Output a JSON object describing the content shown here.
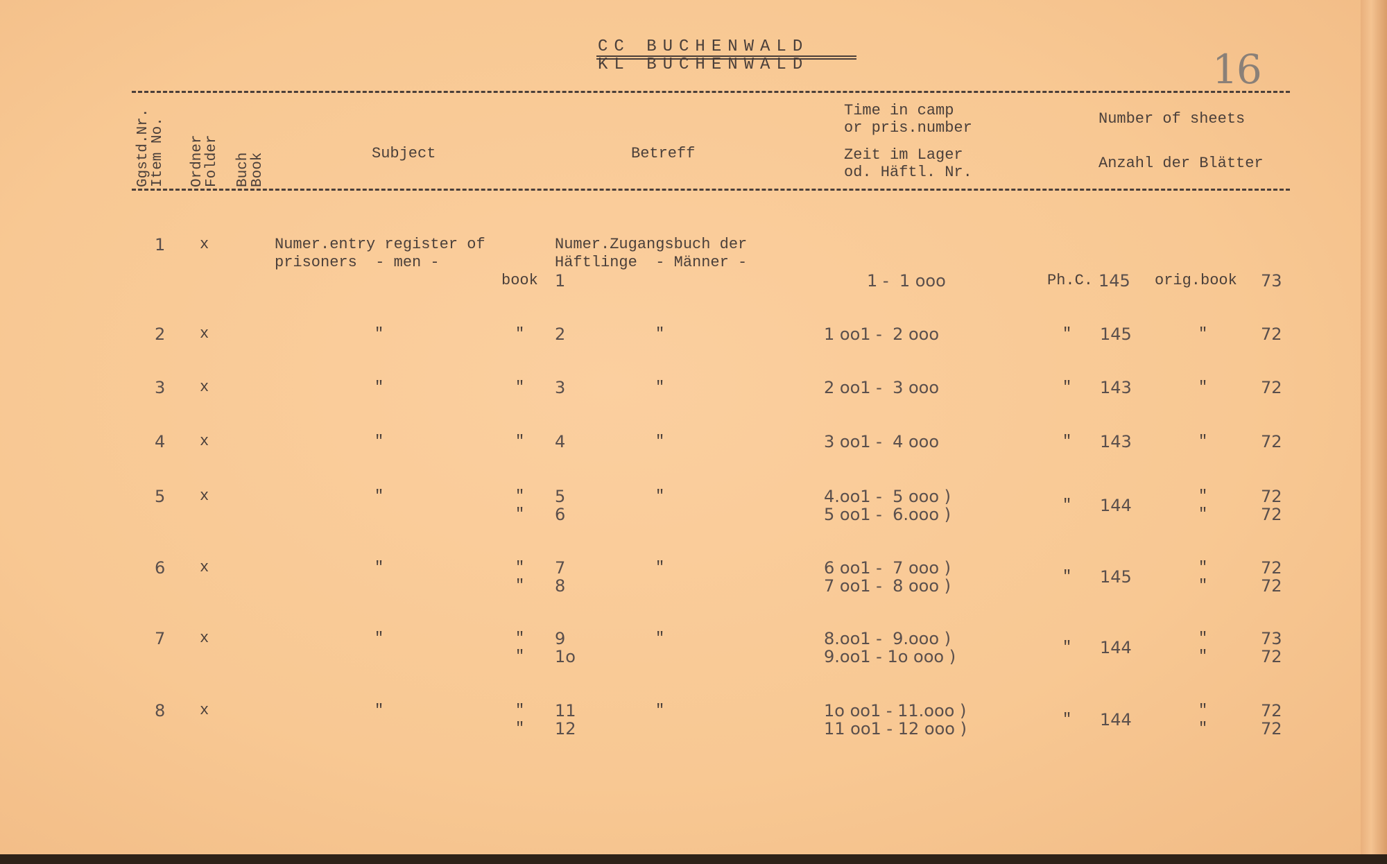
{
  "header": {
    "title_line1": "CC BUCHENWALD",
    "title_line2": "KL BUCHENWALD",
    "page_number": "16"
  },
  "columns": {
    "item": [
      "Item No.",
      "Ggstd.Nr."
    ],
    "folder": [
      "Folder",
      "Ordner"
    ],
    "book": [
      "Book",
      "Buch"
    ],
    "subject": "Subject",
    "betreff": "Betreff",
    "time_en": [
      "Time in camp",
      "or pris.number"
    ],
    "time_de": [
      "Zeit im Lager",
      "od. Häftl. Nr."
    ],
    "sheets_en": "Number of sheets",
    "sheets_de": "Anzahl der Blätter"
  },
  "rows": [
    {
      "item": "1",
      "folder": "x",
      "subject": [
        "Numer.entry register of",
        "prisoners  - men -"
      ],
      "betreff": [
        "Numer.Zugangsbuch der",
        "Häftlinge  - Männer -"
      ],
      "book_label": "book",
      "books": [
        "1"
      ],
      "ranges": [
        "1 -  1 ooo"
      ],
      "ph_label": "Ph.C.",
      "ph": "145",
      "orig_label": "orig.book",
      "sheets": [
        "73"
      ]
    },
    {
      "item": "2",
      "folder": "x",
      "subject": [
        "\""
      ],
      "betreff": [
        "\""
      ],
      "book_label": "\"",
      "books": [
        "2"
      ],
      "ranges": [
        "1 oo1 -  2 ooo"
      ],
      "ph_label": "\"",
      "ph": "145",
      "orig_label": "\"",
      "sheets": [
        "72"
      ]
    },
    {
      "item": "3",
      "folder": "x",
      "subject": [
        "\""
      ],
      "betreff": [
        "\""
      ],
      "book_label": "\"",
      "books": [
        "3"
      ],
      "ranges": [
        "2 oo1 -  3 ooo"
      ],
      "ph_label": "\"",
      "ph": "143",
      "orig_label": "\"",
      "sheets": [
        "72"
      ]
    },
    {
      "item": "4",
      "folder": "x",
      "subject": [
        "\""
      ],
      "betreff": [
        "\""
      ],
      "book_label": "\"",
      "books": [
        "4"
      ],
      "ranges": [
        "3 oo1 -  4 ooo"
      ],
      "ph_label": "\"",
      "ph": "143",
      "orig_label": "\"",
      "sheets": [
        "72"
      ]
    },
    {
      "item": "5",
      "folder": "x",
      "subject": [
        "\""
      ],
      "betreff": [
        "\""
      ],
      "book_label": "\"",
      "books": [
        "5",
        "6"
      ],
      "ranges": [
        "4.oo1 -  5 ooo )",
        "5 oo1 -  6.ooo )"
      ],
      "ph_label": "\"",
      "ph": "144",
      "orig_label": "\"",
      "sheets": [
        "72",
        "72"
      ]
    },
    {
      "item": "6",
      "folder": "x",
      "subject": [
        "\""
      ],
      "betreff": [
        "\""
      ],
      "book_label": "\"",
      "books": [
        "7",
        "8"
      ],
      "ranges": [
        "6 oo1 -  7 ooo )",
        "7 oo1 -  8 ooo )"
      ],
      "ph_label": "\"",
      "ph": "145",
      "orig_label": "\"",
      "sheets": [
        "72",
        "72"
      ]
    },
    {
      "item": "7",
      "folder": "x",
      "subject": [
        "\""
      ],
      "betreff": [
        "\""
      ],
      "book_label": "\"",
      "books": [
        "9",
        "1o"
      ],
      "ranges": [
        "8.oo1 -  9.ooo )",
        "9.oo1 - 1o ooo )"
      ],
      "ph_label": "\"",
      "ph": "144",
      "orig_label": "\"",
      "sheets": [
        "73",
        "72"
      ]
    },
    {
      "item": "8",
      "folder": "x",
      "subject": [
        "\""
      ],
      "betreff": [
        "\""
      ],
      "book_label": "\"",
      "books": [
        "11",
        "12"
      ],
      "ranges": [
        "1o oo1 - 11.ooo )",
        "11 oo1 - 12 ooo )"
      ],
      "ph_label": "\"",
      "ph": "144",
      "orig_label": "\"",
      "sheets": [
        "72",
        "72"
      ]
    }
  ]
}
